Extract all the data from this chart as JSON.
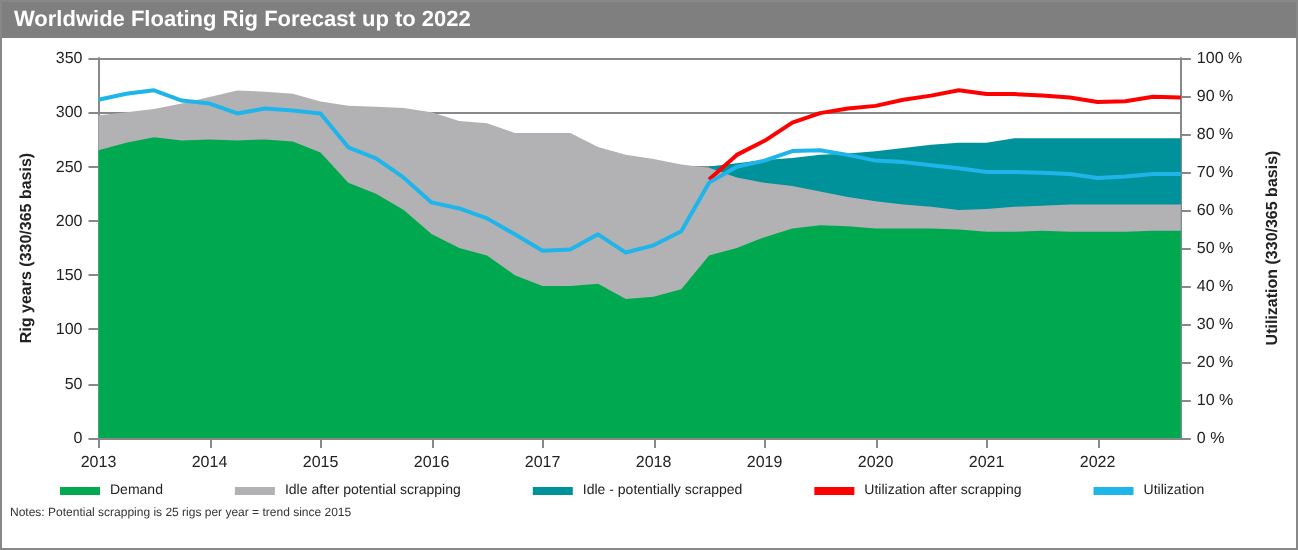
{
  "chart_data": {
    "type": "area",
    "title": "Worldwide Floating Rig Forecast up to 2022",
    "ylabel": "Rig years (330/365 basis)",
    "y2label": "Utilization (330/365 basis)",
    "annotations": [
      "Notes: Potential scrapping is 25 rigs per year = trend since 2015"
    ],
    "stacked": true,
    "grid": "y",
    "legend": "bottom",
    "marker": "none",
    "x": [
      2013,
      2013.25,
      2013.5,
      2013.75,
      2014,
      2014.25,
      2014.5,
      2014.75,
      2015,
      2015.25,
      2015.5,
      2015.75,
      2016,
      2016.25,
      2016.5,
      2016.75,
      2017,
      2017.25,
      2017.5,
      2017.75,
      2018,
      2018.25,
      2018.5,
      2018.75,
      2019,
      2019.25,
      2019.5,
      2019.75,
      2020,
      2020.25,
      2020.5,
      2020.75,
      2021,
      2021.25,
      2021.5,
      2021.75,
      2022,
      2022.25,
      2022.5,
      2022.75
    ],
    "xlim": [
      2013,
      2022.75
    ],
    "xticks": [
      2013,
      2014,
      2015,
      2016,
      2017,
      2018,
      2019,
      2020,
      2021,
      2022
    ],
    "ylim": [
      0,
      350
    ],
    "yticks": [
      0,
      50,
      100,
      150,
      200,
      250,
      300,
      350
    ],
    "y2lim": [
      0,
      100
    ],
    "y2ticks": [
      {
        "value": 0,
        "label": "0 %"
      },
      {
        "value": 10,
        "label": "10 %"
      },
      {
        "value": 20,
        "label": "20 %"
      },
      {
        "value": 30,
        "label": "30 %"
      },
      {
        "value": 40,
        "label": "40 %"
      },
      {
        "value": 50,
        "label": "50 %"
      },
      {
        "value": 60,
        "label": "60 %"
      },
      {
        "value": 70,
        "label": "70 %"
      },
      {
        "value": 80,
        "label": "80 %"
      },
      {
        "value": 90,
        "label": "90 %"
      },
      {
        "value": 100,
        "label": "100 %"
      }
    ],
    "series": [
      {
        "name": "Demand",
        "color": "#00a94f",
        "values": [
          265,
          272,
          277,
          274,
          275,
          274,
          275,
          273,
          263,
          235,
          225,
          210,
          188,
          175,
          168,
          150,
          140,
          140,
          142,
          128,
          130,
          137,
          168,
          175,
          185,
          193,
          196,
          195,
          193,
          193,
          193,
          192,
          190,
          190,
          191,
          190,
          190,
          190,
          191,
          191
        ]
      },
      {
        "name": "Idle after potential scrapping",
        "color": "#b2b2b4",
        "values": [
          32,
          28,
          26,
          34,
          39,
          46,
          44,
          44,
          47,
          71,
          80,
          94,
          112,
          117,
          122,
          131,
          141,
          141,
          126,
          133,
          127,
          115,
          81,
          65,
          50,
          39,
          31,
          27,
          25,
          22,
          20,
          18,
          21,
          23,
          23,
          25,
          25,
          25,
          24,
          24
        ]
      },
      {
        "name": "Idle - potentially scrapped",
        "color": "#00929a",
        "values": [
          null,
          null,
          null,
          null,
          null,
          null,
          null,
          null,
          null,
          null,
          null,
          null,
          null,
          null,
          null,
          null,
          null,
          null,
          null,
          null,
          null,
          null,
          1,
          13,
          21,
          26,
          34,
          40,
          46,
          52,
          57,
          62,
          61,
          63,
          62,
          61,
          61,
          61,
          61,
          61
        ]
      },
      {
        "name": "Utilization after scrapping",
        "type": "line",
        "axis": "y2",
        "color": "#ff0000",
        "values": [
          null,
          null,
          null,
          null,
          null,
          null,
          null,
          null,
          null,
          null,
          null,
          null,
          null,
          null,
          null,
          null,
          null,
          null,
          null,
          null,
          null,
          null,
          68,
          74.5,
          78.2,
          83,
          85.5,
          86.7,
          87.4,
          89,
          90.1,
          91.5,
          90.5,
          90.5,
          90.1,
          89.6,
          88.4,
          88.6,
          89.8,
          89.6
        ]
      },
      {
        "name": "Utilization",
        "type": "line",
        "axis": "y2",
        "color": "#1fb5ea",
        "values": [
          89,
          90.6,
          91.5,
          88.8,
          88,
          85.4,
          86.7,
          86.2,
          85.4,
          76.5,
          73.6,
          68.5,
          62,
          60.4,
          57.8,
          53.6,
          49.3,
          49.6,
          53.6,
          48.8,
          50.7,
          54.4,
          67.2,
          71.4,
          73,
          75.5,
          75.7,
          74.5,
          73,
          72.6,
          71.8,
          71,
          70,
          70,
          69.8,
          69.5,
          68.4,
          68.8,
          69.5,
          69.5
        ]
      }
    ]
  }
}
